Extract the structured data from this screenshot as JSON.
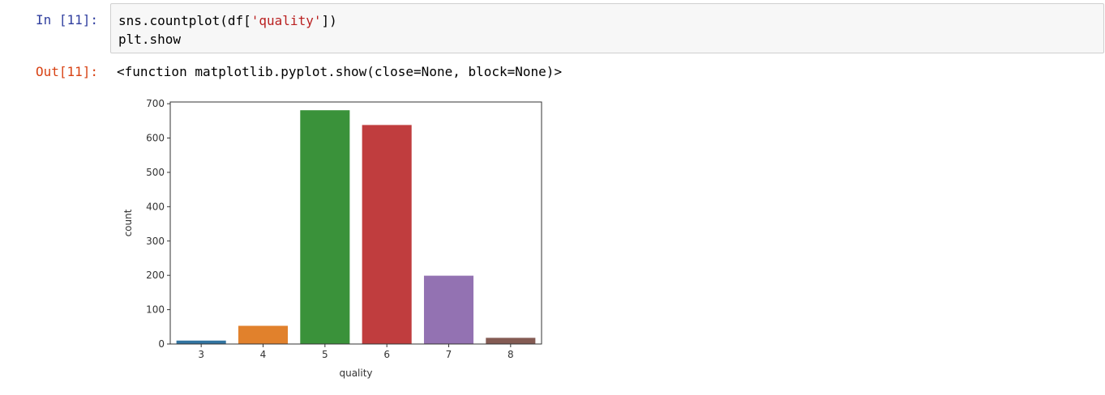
{
  "cell": {
    "in_prompt": "In [11]:",
    "out_prompt": "Out[11]:",
    "code_line1_pre": "sns.countplot(df[",
    "code_line1_str": "'quality'",
    "code_line1_post": "])",
    "code_line2": "plt.show",
    "output_text": "<function matplotlib.pyplot.show(close=None, block=None)>"
  },
  "chart_data": {
    "type": "bar",
    "categories": [
      "3",
      "4",
      "5",
      "6",
      "7",
      "8"
    ],
    "values": [
      10,
      53,
      681,
      638,
      199,
      18
    ],
    "colors": [
      "#3274a1",
      "#e1812c",
      "#3a923a",
      "#c03d3e",
      "#9372b2",
      "#845b53"
    ],
    "xlabel": "quality",
    "ylabel": "count",
    "ylim": [
      0,
      705
    ],
    "yticks": [
      0,
      100,
      200,
      300,
      400,
      500,
      600,
      700
    ],
    "grid": false
  }
}
